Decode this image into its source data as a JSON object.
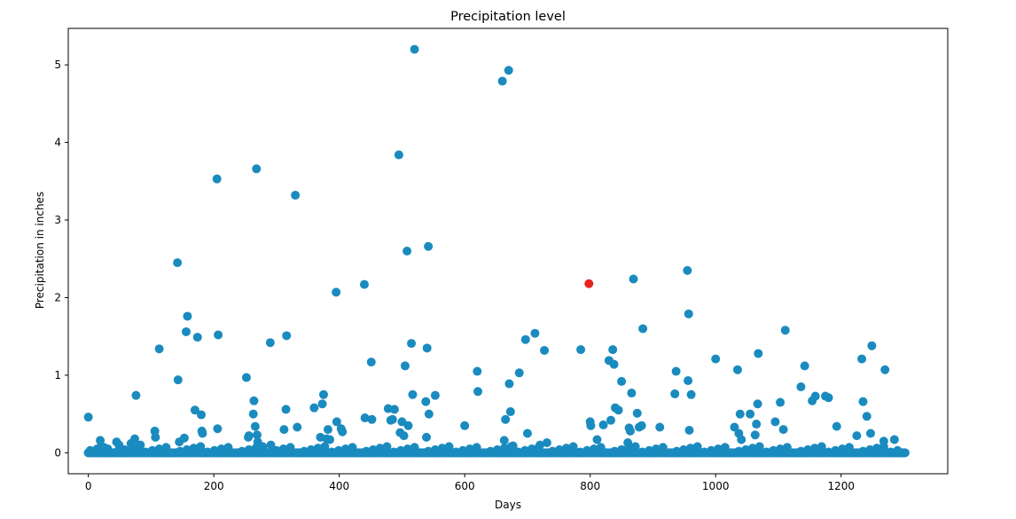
{
  "chart_data": {
    "type": "scatter",
    "title": "Precipitation level",
    "xlabel": "Days",
    "ylabel": "Precipitation in inches",
    "xlim": [
      -32,
      1370
    ],
    "ylim": [
      -0.27,
      5.47
    ],
    "xticks": [
      0,
      200,
      400,
      600,
      800,
      1000,
      1200
    ],
    "yticks": [
      0,
      1,
      2,
      3,
      4,
      5
    ],
    "grid": false,
    "colors": {
      "points": "#1A8BBF",
      "highlight": "#E8231F"
    },
    "series": [
      {
        "x": [
          0,
          19,
          20,
          31,
          45,
          49,
          68,
          74,
          76,
          83,
          106,
          107,
          113,
          142,
          143,
          145,
          153,
          156,
          158,
          170,
          174,
          180,
          181,
          182,
          205,
          206,
          207,
          252,
          255,
          256,
          263,
          264,
          266,
          268,
          269,
          270,
          290,
          291,
          312,
          315,
          316,
          330,
          333,
          360,
          370,
          373,
          375,
          380,
          382,
          385,
          395,
          396,
          403,
          405,
          440,
          441,
          451,
          452,
          478,
          482,
          485,
          488,
          495,
          497,
          500,
          503,
          505,
          508,
          510,
          515,
          517,
          520,
          538,
          539,
          540,
          542,
          543,
          553,
          600,
          620,
          621,
          660,
          663,
          665,
          670,
          671,
          673,
          677,
          687,
          697,
          700,
          712,
          720,
          727,
          731,
          785,
          800,
          801,
          811,
          821,
          830,
          833,
          836,
          838,
          840,
          845,
          850,
          860,
          862,
          864,
          866,
          869,
          875,
          878,
          882,
          884,
          911,
          935,
          937,
          955,
          956,
          957,
          958,
          961,
          1000,
          1030,
          1035,
          1037,
          1039,
          1041,
          1055,
          1063,
          1065,
          1067,
          1068,
          1095,
          1103,
          1108,
          1111,
          1136,
          1142,
          1154,
          1159,
          1175,
          1180,
          1193,
          1225,
          1233,
          1235,
          1241,
          1247,
          1249,
          1268,
          1270,
          1285,
          0,
          60,
          120,
          180,
          240,
          300,
          360,
          420,
          480,
          540,
          600,
          660,
          720,
          780,
          840,
          900,
          960,
          1020,
          1080,
          1140,
          1200,
          1260,
          1300
        ],
        "y": [
          0.46,
          0.16,
          0.08,
          0.05,
          0.14,
          0.1,
          0.12,
          0.18,
          0.74,
          0.1,
          0.28,
          0.2,
          1.34,
          2.45,
          0.94,
          0.14,
          0.19,
          1.56,
          1.76,
          0.55,
          1.49,
          0.49,
          0.28,
          0.25,
          3.53,
          0.31,
          1.52,
          0.97,
          0.2,
          0.22,
          0.5,
          0.67,
          0.34,
          3.66,
          0.23,
          0.14,
          1.42,
          0.1,
          0.3,
          0.56,
          1.51,
          3.32,
          0.33,
          0.58,
          0.2,
          0.63,
          0.75,
          0.18,
          0.3,
          0.17,
          2.07,
          0.4,
          0.31,
          0.27,
          2.17,
          0.45,
          1.17,
          0.43,
          0.57,
          0.42,
          0.43,
          0.56,
          3.84,
          0.26,
          0.4,
          0.22,
          1.12,
          2.6,
          0.35,
          1.41,
          0.75,
          5.2,
          0.66,
          0.2,
          1.35,
          2.66,
          0.5,
          0.74,
          0.35,
          1.05,
          0.79,
          4.79,
          0.16,
          0.43,
          4.93,
          0.89,
          0.53,
          0.09,
          1.03,
          1.46,
          0.25,
          1.54,
          0.1,
          1.32,
          0.13,
          1.33,
          0.4,
          0.35,
          0.17,
          0.36,
          1.19,
          0.42,
          1.33,
          1.14,
          0.58,
          0.55,
          0.92,
          0.13,
          0.32,
          0.28,
          0.77,
          2.24,
          0.51,
          0.33,
          0.35,
          1.6,
          0.33,
          0.76,
          1.05,
          2.35,
          0.93,
          1.79,
          0.29,
          0.75,
          1.21,
          0.33,
          1.07,
          0.25,
          0.5,
          0.17,
          0.5,
          0.23,
          0.37,
          0.63,
          1.28,
          0.4,
          0.65,
          0.3,
          1.58,
          0.85,
          1.12,
          0.67,
          0.73,
          0.73,
          0.71,
          0.34,
          0.22,
          1.21,
          0.66,
          0.47,
          0.25,
          1.38,
          0.15,
          1.07,
          0.17,
          0,
          0,
          0,
          0,
          0,
          0,
          0,
          0,
          0,
          0,
          0,
          0,
          0,
          0,
          0,
          0,
          0,
          0,
          0,
          0,
          0,
          0,
          0
        ]
      },
      {
        "x": [
          798
        ],
        "y": [
          2.18
        ]
      }
    ]
  }
}
